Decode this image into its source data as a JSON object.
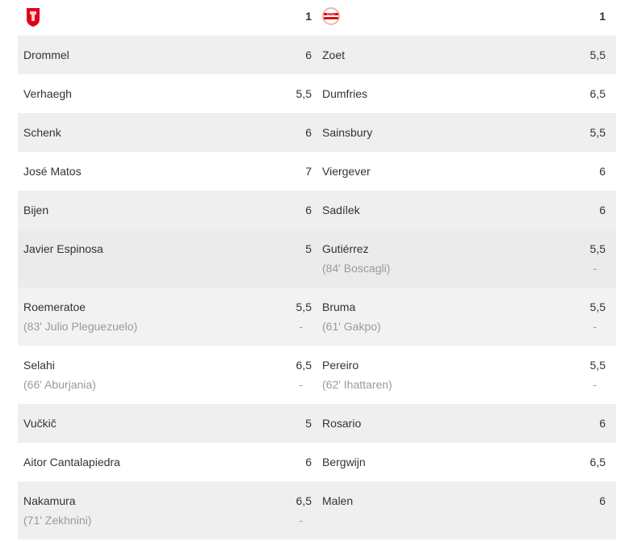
{
  "header": {
    "home_logo": "fc-twente-logo",
    "home_score": "1",
    "away_logo": "psv-logo",
    "away_score": "1",
    "colors": {
      "home": "#e3001b",
      "away": "#e30613"
    }
  },
  "rows": [
    {
      "home": {
        "name": "Drommel",
        "rating": "6"
      },
      "away": {
        "name": "Zoet",
        "rating": "5,5"
      }
    },
    {
      "home": {
        "name": "Verhaegh",
        "rating": "5,5"
      },
      "away": {
        "name": "Dumfries",
        "rating": "6,5"
      }
    },
    {
      "home": {
        "name": "Schenk",
        "rating": "6"
      },
      "away": {
        "name": "Sainsbury",
        "rating": "5,5"
      }
    },
    {
      "home": {
        "name": "José Matos",
        "rating": "7"
      },
      "away": {
        "name": "Viergever",
        "rating": "6"
      }
    },
    {
      "home": {
        "name": "Bijen",
        "rating": "6"
      },
      "away": {
        "name": "Sadílek",
        "rating": "6"
      }
    },
    {
      "home": {
        "name": "Javier Espinosa",
        "rating": "5"
      },
      "away": {
        "name": "Gutiérrez",
        "rating": "5,5",
        "sub": "(84' Boscagli)",
        "sub_rating": "-"
      }
    },
    {
      "home": {
        "name": "Roemeratoe",
        "rating": "5,5",
        "sub": "(83' Julio Pleguezuelo)",
        "sub_rating": "-"
      },
      "away": {
        "name": "Bruma",
        "rating": "5,5",
        "sub": "(61' Gakpo)",
        "sub_rating": "-"
      }
    },
    {
      "home": {
        "name": "Selahi",
        "rating": "6,5",
        "sub": "(66' Aburjania)",
        "sub_rating": "-"
      },
      "away": {
        "name": "Pereiro",
        "rating": "5,5",
        "sub": "(62' Ihattaren)",
        "sub_rating": "-"
      }
    },
    {
      "home": {
        "name": "Vučkič",
        "rating": "5"
      },
      "away": {
        "name": "Rosario",
        "rating": "6"
      }
    },
    {
      "home": {
        "name": "Aitor Cantalapiedra",
        "rating": "6"
      },
      "away": {
        "name": "Bergwijn",
        "rating": "6,5"
      }
    },
    {
      "home": {
        "name": "Nakamura",
        "rating": "6,5",
        "sub": "(71' Zekhnini)",
        "sub_rating": "-"
      },
      "away": {
        "name": "Malen",
        "rating": "6"
      }
    }
  ]
}
